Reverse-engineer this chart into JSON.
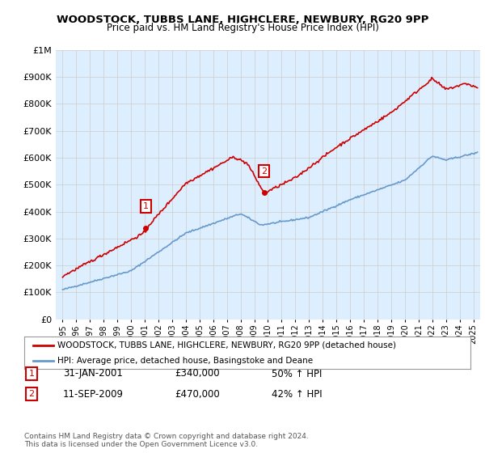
{
  "title": "WOODSTOCK, TUBBS LANE, HIGHCLERE, NEWBURY, RG20 9PP",
  "subtitle": "Price paid vs. HM Land Registry's House Price Index (HPI)",
  "legend_line1": "WOODSTOCK, TUBBS LANE, HIGHCLERE, NEWBURY, RG20 9PP (detached house)",
  "legend_line2": "HPI: Average price, detached house, Basingstoke and Deane",
  "footer1": "Contains HM Land Registry data © Crown copyright and database right 2024.",
  "footer2": "This data is licensed under the Open Government Licence v3.0.",
  "sale1_label": "1",
  "sale1_date": "31-JAN-2001",
  "sale1_price": "£340,000",
  "sale1_hpi": "50% ↑ HPI",
  "sale2_label": "2",
  "sale2_date": "11-SEP-2009",
  "sale2_price": "£470,000",
  "sale2_hpi": "42% ↑ HPI",
  "red_color": "#cc0000",
  "blue_color": "#6699cc",
  "bg_color": "#ddeeff",
  "grid_color": "#cccccc",
  "ylim": [
    0,
    1000000
  ],
  "xlim_start": 1994.5,
  "xlim_end": 2025.5
}
